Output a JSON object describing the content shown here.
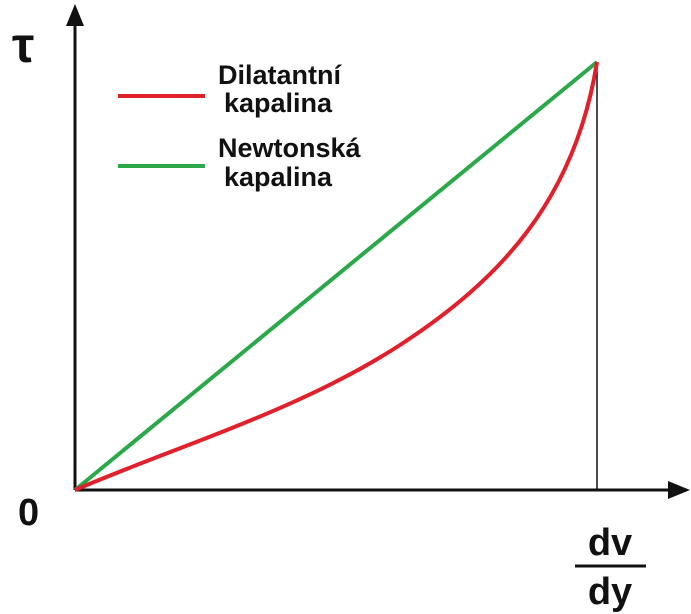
{
  "axes": {
    "y_label": "τ",
    "origin": "0",
    "x_numerator": "dv",
    "x_denominator": "dy"
  },
  "legend": [
    {
      "line1": "Dilatantní",
      "line2": "kapalina",
      "color": "#e0202a"
    },
    {
      "line1": "Newtonská",
      "line2": "kapalina",
      "color": "#2aa84a"
    }
  ]
}
